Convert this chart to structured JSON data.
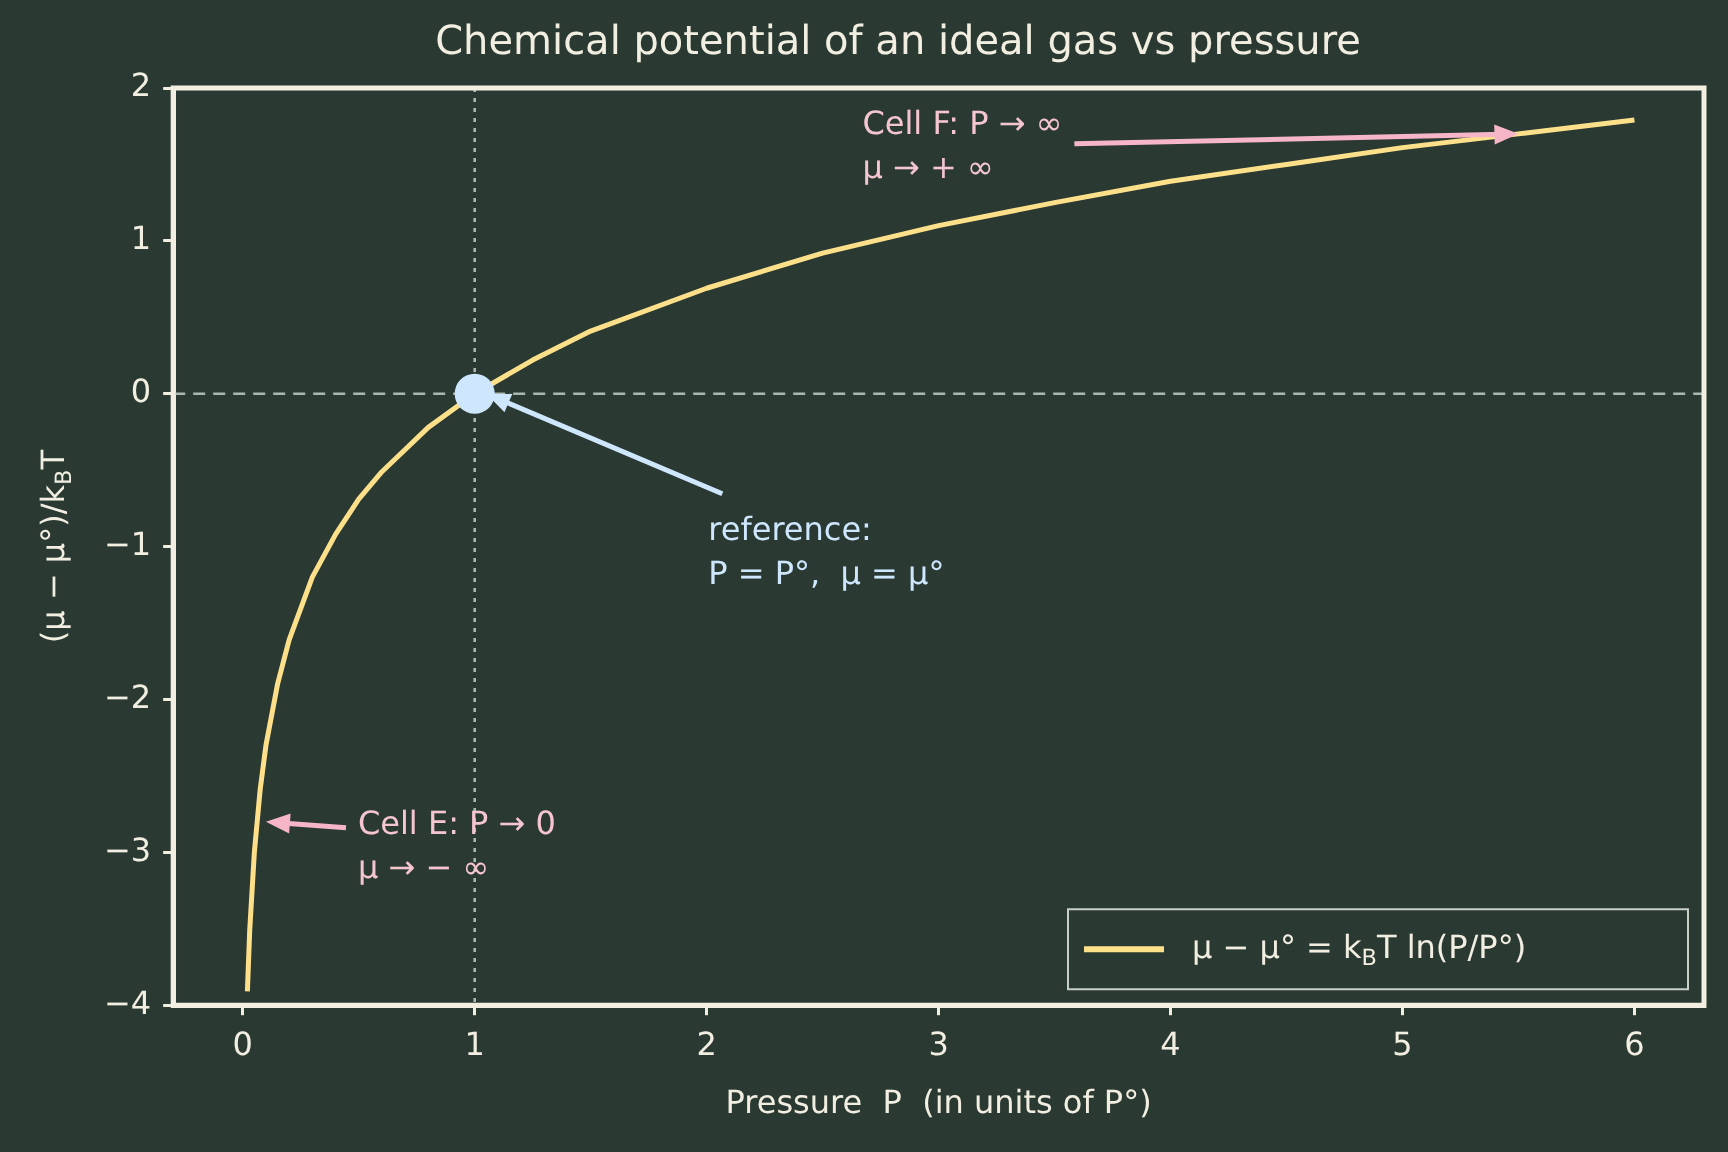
{
  "chart_data": {
    "type": "line",
    "title": "Chemical potential of an ideal gas vs pressure",
    "xlabel": "Pressure  P  (in units of P°)",
    "ylabel": "(μ − μ°)/k$_{B}$T",
    "xlim": [
      -0.3,
      6.3
    ],
    "xticks": [
      0,
      1,
      2,
      3,
      4,
      5,
      6
    ],
    "ylim": [
      -4,
      2
    ],
    "yticks": [
      -4,
      -3,
      -2,
      -1,
      0,
      1,
      2
    ],
    "grid": false,
    "legend": "bottom right",
    "series": [
      {
        "type": "line",
        "name": "μ − μ° = k$_{B}$T ln(P/P°)",
        "color": "#ffe08a",
        "marker": "none",
        "line_style": "solid",
        "x": [
          0.02,
          0.03,
          0.05,
          0.075,
          0.1,
          0.15,
          0.2,
          0.3,
          0.4,
          0.5,
          0.6,
          0.8,
          1,
          1.25,
          1.5,
          2,
          2.5,
          3,
          3.5,
          4,
          4.5,
          5,
          5.5,
          6
        ],
        "values": [
          -3.91,
          -3.51,
          -3.0,
          -2.59,
          -2.3,
          -1.9,
          -1.61,
          -1.2,
          -0.92,
          -0.69,
          -0.51,
          -0.22,
          0,
          0.22,
          0.41,
          0.69,
          0.92,
          1.1,
          1.25,
          1.39,
          1.5,
          1.61,
          1.7,
          1.79
        ]
      },
      {
        "type": "scatter",
        "color": "#cfe6ff",
        "marker": "circle",
        "x": [
          1
        ],
        "values": [
          0
        ]
      }
    ],
    "ref_lines": [
      {
        "axis": "x",
        "value": 1,
        "color": "#a9b8ae",
        "line_style": "dotted"
      },
      {
        "axis": "y",
        "value": 0,
        "color": "#a9b8ae",
        "line_style": "dashed"
      }
    ],
    "annotations": [
      {
        "text": "Cell F: P → ∞\nμ → + ∞",
        "x": 5.5,
        "y": 1.7
      },
      {
        "text": "reference:\nP = P°,  μ = μ°",
        "x": 1.05,
        "y": 0
      },
      {
        "text": "Cell E: P → 0\nμ → − ∞",
        "x": 0.1,
        "y": -2.8
      }
    ]
  }
}
